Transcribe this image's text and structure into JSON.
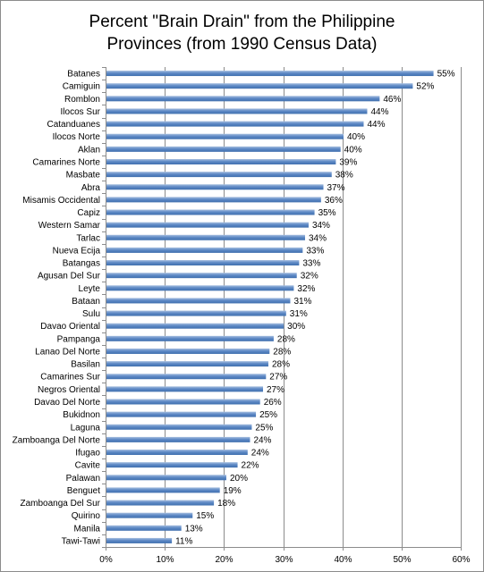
{
  "chart_data": {
    "type": "bar",
    "orientation": "horizontal",
    "title_lines": [
      "Percent \"Brain Drain\" from the Philippine",
      "Provinces (from 1990 Census Data)"
    ],
    "categories": [
      "Batanes",
      "Camiguin",
      "Romblon",
      "Ilocos Sur",
      "Catanduanes",
      "Ilocos Norte",
      "Aklan",
      "Camarines Norte",
      "Masbate",
      "Abra",
      "Misamis Occidental",
      "Capiz",
      "Western Samar",
      "Tarlac",
      "Nueva Ecija",
      "Batangas",
      "Agusan Del Sur",
      "Leyte",
      "Bataan",
      "Sulu",
      "Davao Oriental",
      "Pampanga",
      "Lanao Del Norte",
      "Basilan",
      "Camarines Sur",
      "Negros Oriental",
      "Davao Del Norte",
      "Bukidnon",
      "Laguna",
      "Zamboanga Del Norte",
      "Ifugao",
      "Cavite",
      "Palawan",
      "Benguet",
      "Zamboanga Del Sur",
      "Quirino",
      "Manila",
      "Tawi-Tawi"
    ],
    "values": [
      55.4,
      51.9,
      46.3,
      44.2,
      43.6,
      40.2,
      39.7,
      38.9,
      38.2,
      36.8,
      36.4,
      35.3,
      34.3,
      33.7,
      33.3,
      32.7,
      32.3,
      31.8,
      31.2,
      30.5,
      30.1,
      28.4,
      27.7,
      27.5,
      27.1,
      26.6,
      26.1,
      25.4,
      24.7,
      24.4,
      24.0,
      22.3,
      20.4,
      19.3,
      18.3,
      14.7,
      12.8,
      11.2
    ],
    "value_labels": [
      "55%",
      "52%",
      "46%",
      "44%",
      "44%",
      "40%",
      "40%",
      "39%",
      "38%",
      "37%",
      "36%",
      "35%",
      "34%",
      "34%",
      "33%",
      "33%",
      "32%",
      "32%",
      "31%",
      "31%",
      "30%",
      "28%",
      "28%",
      "28%",
      "27%",
      "27%",
      "26%",
      "25%",
      "25%",
      "24%",
      "24%",
      "22%",
      "20%",
      "19%",
      "18%",
      "15%",
      "13%",
      "11%"
    ],
    "x_ticks": [
      "0%",
      "10%",
      "20%",
      "30%",
      "40%",
      "50%",
      "60%"
    ],
    "xlim": [
      0,
      60
    ],
    "grid": true,
    "bar_color": "#4f81bd",
    "grid_color": "#8c8c8c"
  }
}
